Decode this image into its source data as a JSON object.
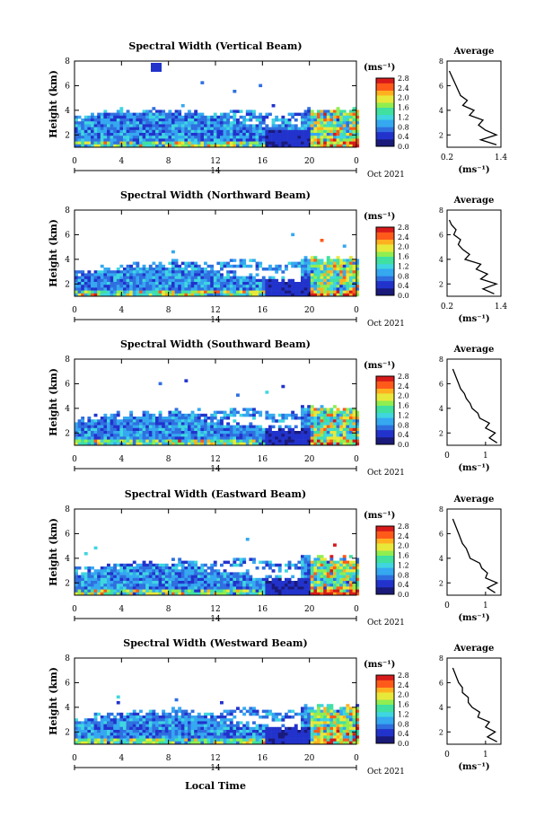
{
  "figure": {
    "bottom_xlabel": "Local Time",
    "date_label": "Oct 2021",
    "day_label": "14",
    "colorbar_unit": "(ms⁻¹)",
    "colorbar_ticks": [
      "0.0",
      "0.4",
      "0.8",
      "1.2",
      "1.6",
      "2.0",
      "2.4",
      "2.8"
    ],
    "colormap": [
      "#1a1a7a",
      "#2233cc",
      "#2f6fe0",
      "#35a8f0",
      "#3fd6e0",
      "#40e0a0",
      "#90ee50",
      "#e8e83a",
      "#ffb020",
      "#ff5a1a",
      "#d81a1a"
    ]
  },
  "chart_data": [
    {
      "type": "heatmap",
      "title": "Spectral Width (Vertical Beam)",
      "ylabel": "Height (km)",
      "xlim": [
        0,
        24
      ],
      "ylim": [
        1,
        8
      ],
      "x_ticks": [
        "0",
        "4",
        "8",
        "12",
        "16",
        "20",
        "0"
      ],
      "y_ticks": [
        "2",
        "4",
        "6",
        "8"
      ],
      "colorbar_range": [
        0.0,
        2.8
      ],
      "profile": {
        "title": "Average",
        "xlabel": "(ms⁻¹)",
        "xlim": [
          0.2,
          1.4
        ],
        "x_ticks": [
          "0.2",
          "1.4"
        ],
        "y_ticks": [
          "2",
          "4",
          "6",
          "8"
        ],
        "heights": [
          1.2,
          1.6,
          2.0,
          2.4,
          2.8,
          3.2,
          3.6,
          4.0,
          4.4,
          4.8,
          5.2,
          5.6,
          6.0,
          6.4,
          6.8,
          7.2
        ],
        "values": [
          1.3,
          0.95,
          1.3,
          1.05,
          0.9,
          1.0,
          0.7,
          0.8,
          0.55,
          0.65,
          0.5,
          0.45,
          0.4,
          0.35,
          0.3,
          0.25
        ]
      }
    },
    {
      "type": "heatmap",
      "title": "Spectral Width (Northward Beam)",
      "ylabel": "Height (km)",
      "xlim": [
        0,
        24
      ],
      "ylim": [
        1,
        8
      ],
      "x_ticks": [
        "0",
        "4",
        "8",
        "12",
        "16",
        "20",
        "0"
      ],
      "y_ticks": [
        "2",
        "4",
        "6",
        "8"
      ],
      "colorbar_range": [
        0.0,
        2.8
      ],
      "profile": {
        "title": "Average",
        "xlabel": "(ms⁻¹)",
        "xlim": [
          0.2,
          1.4
        ],
        "x_ticks": [
          "0.2",
          "1.4"
        ],
        "y_ticks": [
          "2",
          "4",
          "6",
          "8"
        ],
        "heights": [
          1.2,
          1.6,
          2.0,
          2.4,
          2.8,
          3.2,
          3.6,
          4.0,
          4.4,
          4.8,
          5.2,
          5.6,
          6.0,
          6.4,
          6.8,
          7.2
        ],
        "values": [
          1.25,
          1.0,
          1.3,
          0.95,
          1.1,
          0.85,
          0.95,
          0.6,
          0.7,
          0.55,
          0.45,
          0.5,
          0.35,
          0.4,
          0.3,
          0.25
        ]
      }
    },
    {
      "type": "heatmap",
      "title": "Spectral Width (Southward Beam)",
      "ylabel": "Height (km)",
      "xlim": [
        0,
        24
      ],
      "ylim": [
        1,
        8
      ],
      "x_ticks": [
        "0",
        "4",
        "8",
        "12",
        "16",
        "20",
        "0"
      ],
      "y_ticks": [
        "2",
        "4",
        "6",
        "8"
      ],
      "colorbar_range": [
        0.0,
        2.8
      ],
      "profile": {
        "title": "Average",
        "xlabel": "(ms⁻¹)",
        "xlim": [
          0,
          1.4
        ],
        "x_ticks": [
          "0",
          "1"
        ],
        "y_ticks": [
          "2",
          "4",
          "6",
          "8"
        ],
        "heights": [
          1.2,
          1.6,
          2.0,
          2.4,
          2.8,
          3.2,
          3.6,
          4.0,
          4.4,
          4.8,
          5.2,
          5.6,
          6.0,
          6.4,
          6.8,
          7.2
        ],
        "values": [
          1.3,
          1.1,
          1.25,
          1.0,
          1.1,
          0.85,
          0.8,
          0.65,
          0.6,
          0.5,
          0.45,
          0.35,
          0.3,
          0.25,
          0.2,
          0.15
        ]
      }
    },
    {
      "type": "heatmap",
      "title": "Spectral Width (Eastward Beam)",
      "ylabel": "Height (km)",
      "xlim": [
        0,
        24
      ],
      "ylim": [
        1,
        8
      ],
      "x_ticks": [
        "0",
        "4",
        "8",
        "12",
        "16",
        "20",
        "0"
      ],
      "y_ticks": [
        "2",
        "4",
        "6",
        "8"
      ],
      "colorbar_range": [
        0.0,
        2.8
      ],
      "profile": {
        "title": "Average",
        "xlabel": "(ms⁻¹)",
        "xlim": [
          0,
          1.4
        ],
        "x_ticks": [
          "0",
          "1"
        ],
        "y_ticks": [
          "2",
          "4",
          "6",
          "8"
        ],
        "heights": [
          1.2,
          1.6,
          2.0,
          2.4,
          2.8,
          3.2,
          3.6,
          4.0,
          4.4,
          4.8,
          5.2,
          5.6,
          6.0,
          6.4,
          6.8,
          7.2
        ],
        "values": [
          1.25,
          1.05,
          1.3,
          1.0,
          1.05,
          0.9,
          0.85,
          0.6,
          0.55,
          0.5,
          0.4,
          0.35,
          0.3,
          0.25,
          0.2,
          0.15
        ]
      }
    },
    {
      "type": "heatmap",
      "title": "Spectral Width (Westward Beam)",
      "ylabel": "Height (km)",
      "xlabel": "Local Time",
      "xlim": [
        0,
        24
      ],
      "ylim": [
        1,
        8
      ],
      "x_ticks": [
        "0",
        "4",
        "8",
        "12",
        "16",
        "20",
        "0"
      ],
      "y_ticks": [
        "2",
        "4",
        "6",
        "8"
      ],
      "colorbar_range": [
        0.0,
        2.8
      ],
      "profile": {
        "title": "Average",
        "xlabel": "(ms⁻¹)",
        "xlim": [
          0,
          1.4
        ],
        "x_ticks": [
          "0",
          "1"
        ],
        "y_ticks": [
          "2",
          "4",
          "6",
          "8"
        ],
        "heights": [
          1.2,
          1.6,
          2.0,
          2.4,
          2.8,
          3.2,
          3.6,
          4.0,
          4.4,
          4.8,
          5.2,
          5.6,
          6.0,
          6.4,
          6.8,
          7.2
        ],
        "values": [
          1.3,
          1.05,
          1.25,
          1.0,
          1.1,
          0.8,
          0.85,
          0.65,
          0.55,
          0.55,
          0.4,
          0.4,
          0.3,
          0.25,
          0.2,
          0.15
        ]
      }
    }
  ]
}
